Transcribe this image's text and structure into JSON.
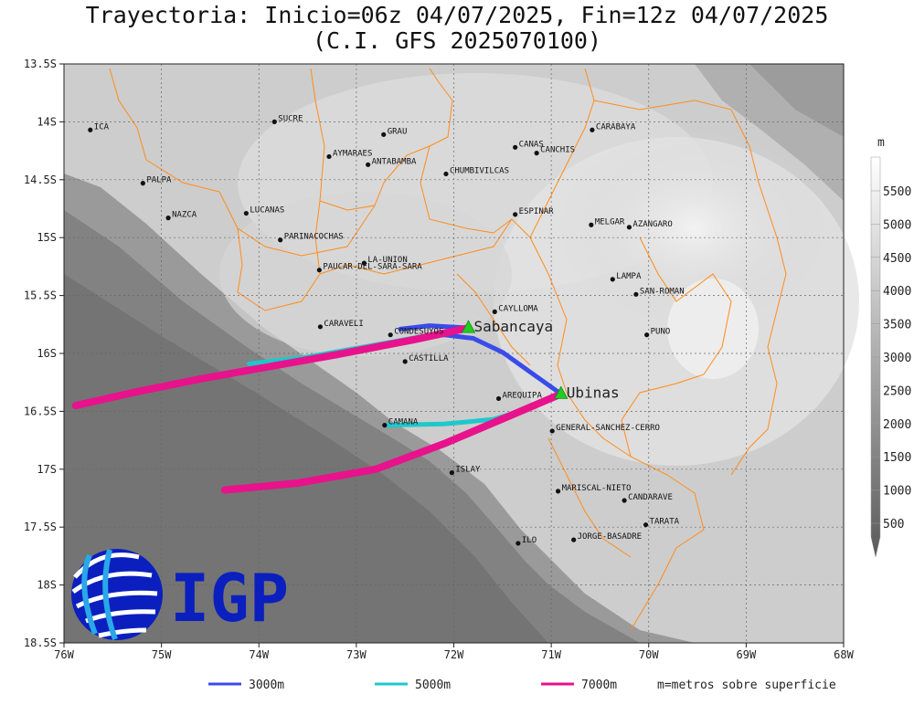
{
  "title": {
    "line1": "Trayectoria: Inicio=06z 04/07/2025, Fin=12z 04/07/2025",
    "line2": "(C.I. GFS 2025070100)"
  },
  "axes": {
    "y_ticks": [
      "13.5S",
      "14S",
      "14.5S",
      "15S",
      "15.5S",
      "16S",
      "16.5S",
      "17S",
      "17.5S",
      "18S",
      "18.5S"
    ],
    "x_ticks": [
      "76W",
      "75W",
      "74W",
      "73W",
      "72W",
      "71W",
      "70W",
      "69W",
      "68W"
    ],
    "lat_range": [
      -18.5,
      -13.5
    ],
    "lon_range": [
      -76,
      -68
    ]
  },
  "colorbar": {
    "unit": "m",
    "labels": [
      "5500",
      "5000",
      "4500",
      "4000",
      "3500",
      "3000",
      "2500",
      "2000",
      "1500",
      "1000",
      "500"
    ]
  },
  "places": [
    {
      "name": "ICA",
      "lon": -75.73,
      "lat": -14.07
    },
    {
      "name": "SUCRE",
      "lon": -73.84,
      "lat": -14.0
    },
    {
      "name": "GRAU",
      "lon": -72.72,
      "lat": -14.11
    },
    {
      "name": "AYMARAES",
      "lon": -73.28,
      "lat": -14.3
    },
    {
      "name": "ANTABAMBA",
      "lon": -72.88,
      "lat": -14.37
    },
    {
      "name": "CANAS",
      "lon": -71.37,
      "lat": -14.22
    },
    {
      "name": "CANCHIS",
      "lon": -71.15,
      "lat": -14.27
    },
    {
      "name": "CARABAYA",
      "lon": -70.58,
      "lat": -14.07
    },
    {
      "name": "CHUMBIVILCAS",
      "lon": -72.08,
      "lat": -14.45
    },
    {
      "name": "PALPA",
      "lon": -75.19,
      "lat": -14.53
    },
    {
      "name": "LUCANAS",
      "lon": -74.13,
      "lat": -14.79
    },
    {
      "name": "NAZCA",
      "lon": -74.93,
      "lat": -14.83
    },
    {
      "name": "ESPINAR",
      "lon": -71.37,
      "lat": -14.8
    },
    {
      "name": "MELGAR",
      "lon": -70.59,
      "lat": -14.89
    },
    {
      "name": "AZANGARO",
      "lon": -70.2,
      "lat": -14.91
    },
    {
      "name": "PARINACOCHAS",
      "lon": -73.78,
      "lat": -15.02
    },
    {
      "name": "LA-UNION",
      "lon": -72.92,
      "lat": -15.22
    },
    {
      "name": "PAUCAR-DEL-SARA-SARA",
      "lon": -73.38,
      "lat": -15.28
    },
    {
      "name": "LAMPA",
      "lon": -70.37,
      "lat": -15.36
    },
    {
      "name": "SAN-ROMAN",
      "lon": -70.13,
      "lat": -15.49
    },
    {
      "name": "CAYLLOMA",
      "lon": -71.58,
      "lat": -15.64
    },
    {
      "name": "CARAVELI",
      "lon": -73.37,
      "lat": -15.77
    },
    {
      "name": "CONDESUYOS",
      "lon": -72.65,
      "lat": -15.84
    },
    {
      "name": "PUNO",
      "lon": -70.02,
      "lat": -15.84
    },
    {
      "name": "CASTILLA",
      "lon": -72.5,
      "lat": -16.07
    },
    {
      "name": "AREQUIPA",
      "lon": -71.54,
      "lat": -16.39
    },
    {
      "name": "CAMANA",
      "lon": -72.71,
      "lat": -16.62
    },
    {
      "name": "GENERAL-SANCHEZ-CERRO",
      "lon": -70.99,
      "lat": -16.67
    },
    {
      "name": "ISLAY",
      "lon": -72.02,
      "lat": -17.03
    },
    {
      "name": "MARISCAL-NIETO",
      "lon": -70.93,
      "lat": -17.19
    },
    {
      "name": "CANDARAVE",
      "lon": -70.25,
      "lat": -17.27
    },
    {
      "name": "TARATA",
      "lon": -70.03,
      "lat": -17.48
    },
    {
      "name": "ILO",
      "lon": -71.34,
      "lat": -17.64
    },
    {
      "name": "JORGE-BASADRE",
      "lon": -70.77,
      "lat": -17.61
    }
  ],
  "volcanoes": [
    {
      "name": "Sabancaya",
      "lon": -71.85,
      "lat": -15.78
    },
    {
      "name": "Ubinas",
      "lon": -70.9,
      "lat": -16.35
    }
  ],
  "trajectories": [
    {
      "label": "3000m",
      "color": "#3a4bea",
      "from": "Sabancaya",
      "points": [
        [
          -71.85,
          -15.78
        ],
        [
          -72.25,
          -15.76
        ],
        [
          -72.55,
          -15.79
        ]
      ]
    },
    {
      "label": "3000m",
      "color": "#3a4bea",
      "from": "Ubinas",
      "points": [
        [
          -70.9,
          -16.35
        ],
        [
          -71.2,
          -16.17
        ],
        [
          -71.5,
          -15.99
        ],
        [
          -71.8,
          -15.87
        ],
        [
          -72.1,
          -15.84
        ],
        [
          -72.35,
          -15.86
        ]
      ]
    },
    {
      "label": "5000m",
      "color": "#1ec8cc",
      "from": "Sabancaya",
      "points": [
        [
          -71.85,
          -15.78
        ],
        [
          -72.3,
          -15.85
        ],
        [
          -72.9,
          -15.94
        ],
        [
          -73.5,
          -16.03
        ],
        [
          -74.1,
          -16.09
        ]
      ]
    },
    {
      "label": "5000m",
      "color": "#1ec8cc",
      "from": "Ubinas",
      "points": [
        [
          -70.9,
          -16.35
        ],
        [
          -71.2,
          -16.47
        ],
        [
          -71.6,
          -16.57
        ],
        [
          -72.1,
          -16.61
        ],
        [
          -72.7,
          -16.62
        ]
      ]
    },
    {
      "label": "7000m",
      "color": "#e8128c",
      "from": "Sabancaya",
      "points": [
        [
          -71.85,
          -15.78
        ],
        [
          -72.4,
          -15.88
        ],
        [
          -73.2,
          -16.01
        ],
        [
          -73.8,
          -16.1
        ],
        [
          -74.6,
          -16.22
        ],
        [
          -75.3,
          -16.34
        ],
        [
          -75.88,
          -16.45
        ]
      ]
    },
    {
      "label": "7000m",
      "color": "#e8128c",
      "from": "Ubinas",
      "points": [
        [
          -70.9,
          -16.35
        ],
        [
          -71.4,
          -16.53
        ],
        [
          -72.1,
          -16.78
        ],
        [
          -72.8,
          -17.0
        ],
        [
          -73.6,
          -17.12
        ],
        [
          -74.35,
          -17.18
        ]
      ]
    }
  ],
  "legend": {
    "items": [
      {
        "label": "3000m",
        "color": "#3a4bea"
      },
      {
        "label": "5000m",
        "color": "#1ec8cc"
      },
      {
        "label": "7000m",
        "color": "#e8128c"
      }
    ],
    "note": "m=metros sobre superficie"
  },
  "logo": {
    "text": "IGP",
    "color": "#0b1fbf"
  }
}
